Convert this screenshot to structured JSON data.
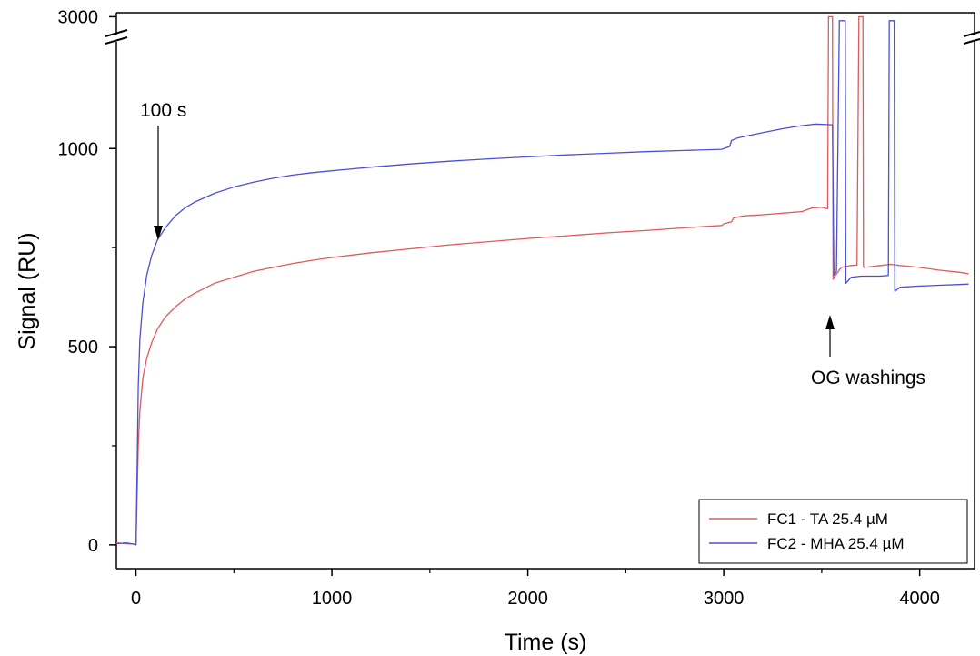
{
  "chart_data": {
    "type": "line",
    "title": "",
    "xlabel": "Time (s)",
    "ylabel": "Signal (RU)",
    "xlim": [
      -100,
      4280
    ],
    "ylim": [
      -60,
      3000
    ],
    "broken_axis": {
      "lower_range": [
        -60,
        1260
      ],
      "upper_range": [
        2880,
        3030
      ]
    },
    "x_ticks": [
      0,
      1000,
      2000,
      3000,
      4000
    ],
    "x_tick_labels": [
      "0",
      "1000",
      "2000",
      "3000",
      "4000"
    ],
    "y_ticks": [
      0,
      500,
      1000,
      3000
    ],
    "y_tick_labels": [
      "0",
      "500",
      "1000",
      "3000"
    ],
    "grid": false,
    "legend": {
      "position": "bottom-right"
    },
    "annotations": [
      {
        "text": "100 s",
        "x": 100
      },
      {
        "text": "OG washings",
        "x": 3570
      }
    ],
    "series": [
      {
        "name": "FC1 - TA 25.4 µM",
        "color": "#e05a5a",
        "points": [
          [
            -100,
            5
          ],
          [
            -50,
            3
          ],
          [
            -10,
            2
          ],
          [
            0,
            0
          ],
          [
            5,
            100
          ],
          [
            12,
            250
          ],
          [
            20,
            340
          ],
          [
            35,
            420
          ],
          [
            55,
            470
          ],
          [
            80,
            510
          ],
          [
            110,
            545
          ],
          [
            150,
            575
          ],
          [
            200,
            600
          ],
          [
            250,
            620
          ],
          [
            300,
            635
          ],
          [
            400,
            660
          ],
          [
            500,
            675
          ],
          [
            600,
            690
          ],
          [
            700,
            700
          ],
          [
            800,
            710
          ],
          [
            900,
            718
          ],
          [
            1000,
            725
          ],
          [
            1200,
            737
          ],
          [
            1400,
            747
          ],
          [
            1600,
            757
          ],
          [
            1800,
            765
          ],
          [
            2000,
            773
          ],
          [
            2200,
            780
          ],
          [
            2400,
            787
          ],
          [
            2600,
            793
          ],
          [
            2800,
            800
          ],
          [
            2990,
            806
          ],
          [
            3000,
            810
          ],
          [
            3040,
            815
          ],
          [
            3050,
            825
          ],
          [
            3080,
            828
          ],
          [
            3100,
            830
          ],
          [
            3200,
            833
          ],
          [
            3300,
            837
          ],
          [
            3400,
            841
          ],
          [
            3450,
            850
          ],
          [
            3500,
            852
          ],
          [
            3530,
            848
          ],
          [
            3535,
            3000
          ],
          [
            3555,
            3000
          ],
          [
            3558,
            670
          ],
          [
            3570,
            680
          ],
          [
            3600,
            700
          ],
          [
            3650,
            705
          ],
          [
            3680,
            706
          ],
          [
            3690,
            3000
          ],
          [
            3710,
            3000
          ],
          [
            3713,
            700
          ],
          [
            3750,
            702
          ],
          [
            3800,
            705
          ],
          [
            3850,
            708
          ],
          [
            3900,
            705
          ],
          [
            4000,
            700
          ],
          [
            4100,
            693
          ],
          [
            4200,
            688
          ],
          [
            4250,
            684
          ]
        ]
      },
      {
        "name": "FC2 - MHA 25.4 µM",
        "color": "#4b4fd6",
        "points": [
          [
            -100,
            3
          ],
          [
            -50,
            5
          ],
          [
            -10,
            2
          ],
          [
            0,
            0
          ],
          [
            5,
            150
          ],
          [
            12,
            400
          ],
          [
            20,
            520
          ],
          [
            35,
            610
          ],
          [
            55,
            680
          ],
          [
            80,
            730
          ],
          [
            110,
            770
          ],
          [
            150,
            800
          ],
          [
            200,
            830
          ],
          [
            250,
            850
          ],
          [
            300,
            865
          ],
          [
            400,
            887
          ],
          [
            500,
            903
          ],
          [
            600,
            915
          ],
          [
            700,
            925
          ],
          [
            800,
            933
          ],
          [
            900,
            939
          ],
          [
            1000,
            944
          ],
          [
            1200,
            953
          ],
          [
            1400,
            961
          ],
          [
            1600,
            968
          ],
          [
            1800,
            974
          ],
          [
            2000,
            979
          ],
          [
            2200,
            984
          ],
          [
            2400,
            988
          ],
          [
            2600,
            992
          ],
          [
            2800,
            995
          ],
          [
            2990,
            998
          ],
          [
            3000,
            1000
          ],
          [
            3030,
            1005
          ],
          [
            3040,
            1020
          ],
          [
            3060,
            1025
          ],
          [
            3080,
            1028
          ],
          [
            3100,
            1030
          ],
          [
            3200,
            1040
          ],
          [
            3300,
            1050
          ],
          [
            3400,
            1058
          ],
          [
            3470,
            1062
          ],
          [
            3550,
            1060
          ],
          [
            3555,
            1060
          ],
          [
            3562,
            680
          ],
          [
            3575,
            690
          ],
          [
            3590,
            2970
          ],
          [
            3620,
            2970
          ],
          [
            3623,
            660
          ],
          [
            3650,
            675
          ],
          [
            3700,
            678
          ],
          [
            3750,
            678
          ],
          [
            3800,
            678
          ],
          [
            3840,
            680
          ],
          [
            3845,
            2970
          ],
          [
            3870,
            2970
          ],
          [
            3873,
            640
          ],
          [
            3900,
            650
          ],
          [
            4000,
            653
          ],
          [
            4100,
            655
          ],
          [
            4200,
            657
          ],
          [
            4250,
            658
          ]
        ]
      }
    ]
  }
}
